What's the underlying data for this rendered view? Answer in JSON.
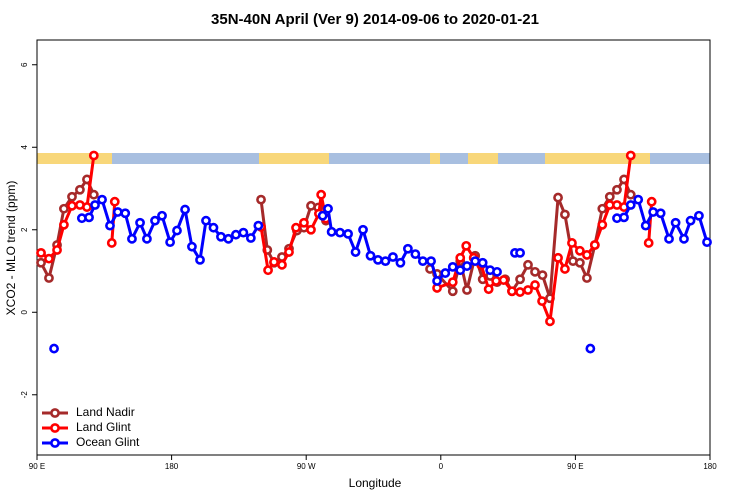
{
  "chart_data": {
    "type": "line",
    "title": "35N-40N April (Ver 9)   2014-09-06 to 2020-01-21",
    "xlabel": "Longitude",
    "ylabel": "XCO2 - MLO trend (ppm)",
    "xlim": [
      90,
      540
    ],
    "ylim": [
      -3.46,
      6.6
    ],
    "xticks": [
      {
        "value": 90,
        "label": "90 E"
      },
      180,
      {
        "value": 270,
        "label": "90 W"
      },
      {
        "value": 360,
        "label": "0"
      },
      {
        "value": 450,
        "label": "90 E"
      },
      {
        "value": 540,
        "label": "180"
      }
    ],
    "yticks": [
      -2,
      0,
      2,
      4,
      6
    ],
    "legend": "bottom-left",
    "series": [
      {
        "name": "Land Nadir",
        "color": "#a52a2a",
        "x": [
          92.7,
          98,
          103.4,
          108,
          113.4,
          118.7,
          123.4,
          128,
          200,
          239.8,
          244,
          248.5,
          253.8,
          258.5,
          263.8,
          268.5,
          273.2,
          278,
          283.2,
          320,
          352.8,
          357.5,
          368,
          373,
          377.5,
          383,
          388,
          393,
          397.6,
          403,
          407.6,
          413,
          418.3,
          423,
          428,
          433,
          438.4,
          443,
          448.4,
          453,
          457.7,
          463,
          468,
          473,
          477.8,
          482.5,
          487
        ],
        "values": [
          1.2,
          0.83,
          1.63,
          2.51,
          2.8,
          2.97,
          3.22,
          2.85,
          null,
          2.73,
          1.51,
          1.2,
          1.34,
          1.54,
          1.98,
          2.05,
          2.58,
          2.54,
          2.22,
          null,
          1.05,
          0.93,
          0.51,
          1.24,
          0.54,
          1.37,
          0.8,
          0.88,
          0.73,
          0.8,
          0.51,
          0.8,
          1.15,
          0.98,
          0.9,
          0.34,
          2.78,
          2.37,
          1.24,
          1.2,
          0.83,
          1.63,
          2.51,
          2.8,
          2.97,
          3.22,
          2.85
        ]
      },
      {
        "name": "Land Glint",
        "color": "#ff0000",
        "x": [
          92.7,
          98,
          103.4,
          108,
          113.4,
          118.7,
          123.4,
          128,
          134,
          140,
          142,
          200,
          239.8,
          244.5,
          248.5,
          253.8,
          258.5,
          263.2,
          268.5,
          273.2,
          278.5,
          280,
          283.2,
          320,
          357.5,
          368,
          373,
          377,
          382,
          387,
          392,
          397,
          402,
          407.6,
          413,
          418.3,
          423,
          427.7,
          433,
          438.4,
          443,
          447.7,
          453,
          457.7,
          463,
          468,
          473,
          477.8,
          482.5,
          487,
          493,
          499,
          501
        ],
        "values": [
          1.44,
          1.3,
          1.51,
          2.12,
          2.58,
          2.6,
          2.55,
          3.8,
          null,
          1.68,
          2.68,
          null,
          2.07,
          1.02,
          1.22,
          1.15,
          1.46,
          2.05,
          2.17,
          2.0,
          2.39,
          2.85,
          2.27,
          null,
          0.59,
          0.73,
          1.32,
          1.61,
          1.32,
          1.15,
          0.56,
          0.76,
          0.78,
          0.51,
          0.49,
          0.54,
          0.66,
          0.27,
          -0.22,
          1.32,
          1.05,
          1.68,
          1.49,
          1.39,
          1.63,
          2.12,
          2.6,
          2.6,
          2.55,
          3.8,
          null,
          1.68,
          2.68
        ]
      },
      {
        "name": "Ocean Glint",
        "color": "#0000ff",
        "x": [
          101.4,
          110,
          120,
          124.8,
          128.8,
          133.5,
          138.8,
          144,
          149,
          153.5,
          158.9,
          163.5,
          168.9,
          173.6,
          179,
          183.6,
          189,
          193.6,
          199,
          203,
          208,
          213,
          218,
          223,
          228,
          233,
          238,
          260,
          281,
          284.6,
          287,
          292.6,
          298,
          303,
          308,
          313,
          318,
          323,
          328,
          333,
          338,
          343,
          348,
          353.5,
          357.5,
          363,
          368,
          373,
          377.5,
          383,
          388,
          393,
          397.6,
          403,
          409.6,
          413,
          430,
          460,
          470,
          477.8,
          482.5,
          487,
          492,
          497,
          502,
          507,
          512.6,
          517,
          522.6,
          527,
          532.6,
          538
        ],
        "values": [
          -0.88,
          null,
          2.28,
          2.3,
          2.6,
          2.73,
          2.1,
          2.43,
          2.4,
          1.78,
          2.17,
          1.78,
          2.22,
          2.34,
          1.7,
          1.98,
          2.49,
          1.59,
          1.27,
          2.22,
          2.05,
          1.83,
          1.78,
          1.88,
          1.93,
          1.8,
          2.1,
          null,
          2.34,
          2.51,
          1.95,
          1.93,
          1.9,
          1.46,
          2.0,
          1.37,
          1.27,
          1.24,
          1.34,
          1.2,
          1.54,
          1.41,
          1.24,
          1.24,
          0.76,
          0.95,
          1.1,
          1.02,
          1.12,
          1.24,
          1.2,
          1.02,
          0.98,
          null,
          1.44,
          1.44,
          null,
          -0.88,
          null,
          2.28,
          2.3,
          2.6,
          2.73,
          2.1,
          2.43,
          2.4,
          1.78,
          2.17,
          1.78,
          2.22,
          2.34,
          1.7
        ]
      }
    ]
  }
}
